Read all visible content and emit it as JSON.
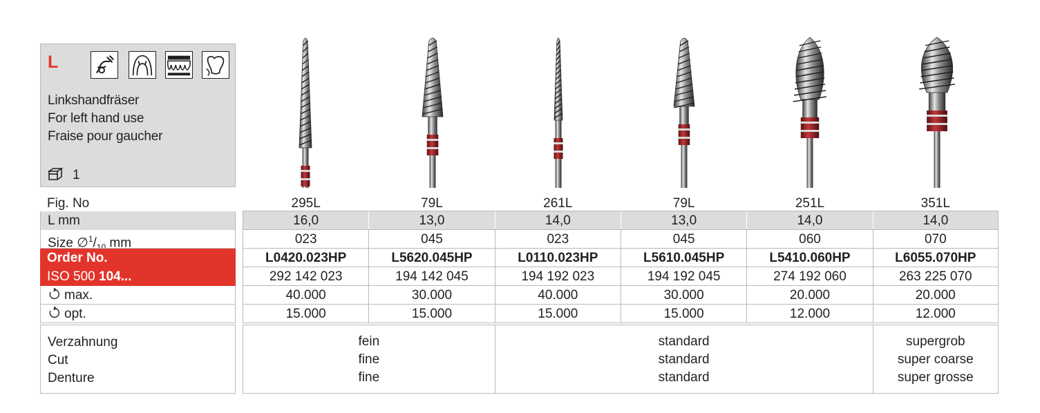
{
  "info": {
    "letter": "L",
    "icons": [
      "crown-separation-icon",
      "gingiva-icon",
      "teeth-row-icon",
      "tooth-model-icon"
    ],
    "desc": [
      "Linkshandfräser",
      "For left hand use",
      "Fraise pour gaucher"
    ],
    "pack_icon": "package-icon",
    "pack_count": "1"
  },
  "labels": {
    "fig_no": "Fig. No",
    "l_mm": "L mm",
    "size_prefix": "Size ",
    "size_sym": "∅",
    "size_sup": "1",
    "size_den": "10",
    "size_unit": "mm",
    "order_no": "Order No.",
    "iso_prefix": "ISO 500 ",
    "iso_bold": "104",
    "iso_suffix": "...",
    "max": "max.",
    "opt": "opt.",
    "cut": [
      "Verzahnung",
      "Cut",
      "Denture"
    ]
  },
  "products": [
    {
      "fig": "295L",
      "l_mm": "16,0",
      "size": "023",
      "order": "L0420.023HP",
      "iso": "292 142 023",
      "max": "40.000",
      "opt": "15.000"
    },
    {
      "fig": "79L",
      "l_mm": "13,0",
      "size": "045",
      "order": "L5620.045HP",
      "iso": "194 142 045",
      "max": "30.000",
      "opt": "15.000"
    },
    {
      "fig": "261L",
      "l_mm": "14,0",
      "size": "023",
      "order": "L0110.023HP",
      "iso": "194 192 023",
      "max": "40.000",
      "opt": "15.000"
    },
    {
      "fig": "79L",
      "l_mm": "13,0",
      "size": "045",
      "order": "L5610.045HP",
      "iso": "194 192 045",
      "max": "30.000",
      "opt": "15.000"
    },
    {
      "fig": "251L",
      "l_mm": "14,0",
      "size": "060",
      "order": "L5410.060HP",
      "iso": "274 192 060",
      "max": "20.000",
      "opt": "12.000"
    },
    {
      "fig": "351L",
      "l_mm": "14,0",
      "size": "070",
      "order": "L6055.070HP",
      "iso": "263 225 070",
      "max": "20.000",
      "opt": "12.000"
    }
  ],
  "cut_groups": [
    {
      "span": 2,
      "lines": [
        "fein",
        "fine",
        "fine"
      ]
    },
    {
      "span": 3,
      "lines": [
        "standard",
        "standard",
        "standard"
      ]
    },
    {
      "span": 1,
      "lines": [
        "supergrob",
        "super coarse",
        "super grosse"
      ]
    }
  ],
  "colors": {
    "accent_red": "#e2342b",
    "band_red": "#b3262a",
    "grey_fill": "#dcdcdd",
    "border": "#b9b9ba"
  }
}
